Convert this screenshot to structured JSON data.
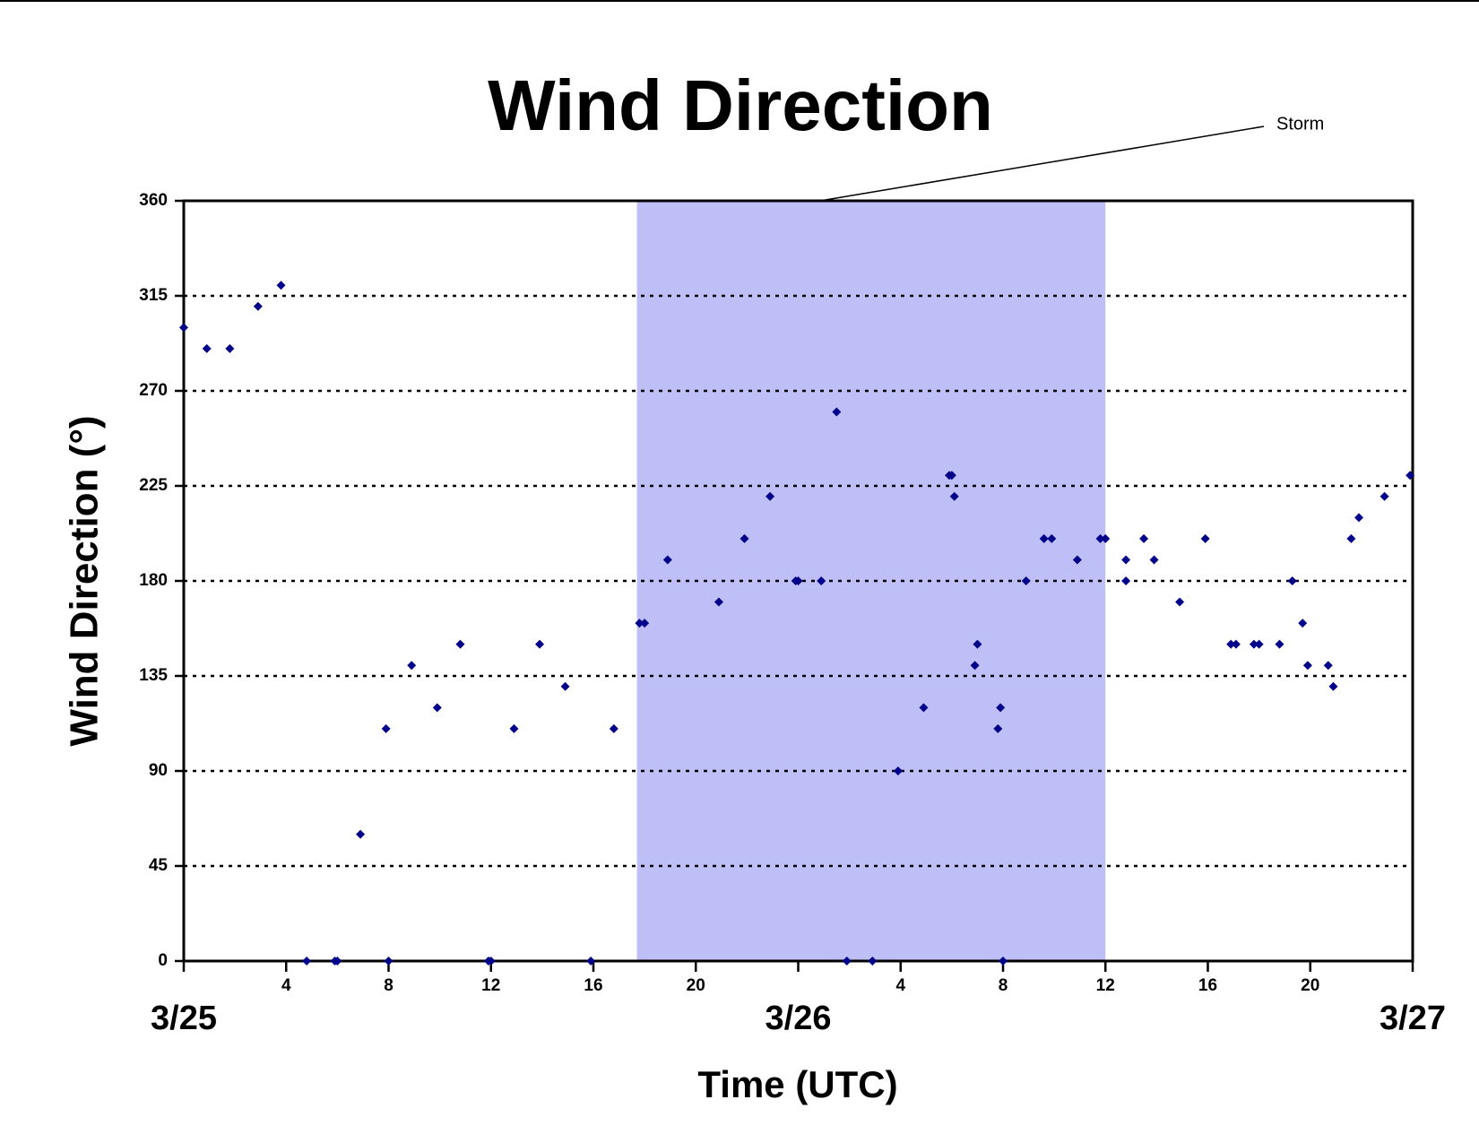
{
  "chart_data": {
    "type": "scatter",
    "title": "Wind Direction",
    "x_label": "Time (UTC)",
    "y_label": "Wind Direction (°)",
    "annotation": "Storm",
    "storm_span": [
      17.7,
      36
    ],
    "storm_color": "#bfbff7",
    "color": "#00008b",
    "grid": true,
    "xlim": [
      0,
      48
    ],
    "xticks": [
      {
        "value": 0,
        "label": "3/25"
      },
      4,
      8,
      12,
      16,
      20,
      {
        "value": 24,
        "label": "3/26"
      },
      4,
      8,
      12,
      16,
      20,
      {
        "value": 48,
        "label": "3/27"
      }
    ],
    "ylim": [
      0,
      360
    ],
    "yticks": [
      0,
      45,
      90,
      135,
      180,
      225,
      270,
      315,
      360
    ],
    "x": [
      0,
      0.9,
      1.8,
      2.9,
      3.8,
      4.8,
      5.9,
      6,
      6.9,
      7.9,
      8,
      8.9,
      9.9,
      10.8,
      11.9,
      12,
      12.9,
      13.9,
      14.9,
      15.9,
      16.8,
      17.8,
      18,
      18.9,
      20.9,
      21.9,
      22.9,
      23.9,
      24,
      24.9,
      25.5,
      25.9,
      26.9,
      27.9,
      28.9,
      29.9,
      30,
      30.1,
      30.9,
      31,
      31.8,
      31.9,
      32,
      32.9,
      33.6,
      33.9,
      34.9,
      35.8,
      36,
      36.8,
      36.8,
      37.5,
      37.9,
      38.9,
      39.9,
      40.9,
      41.1,
      41.8,
      42,
      42.8,
      43.3,
      43.7,
      43.9,
      44.7,
      44.9,
      45.6,
      45.9,
      46.9,
      47.9
    ],
    "values": [
      300,
      290,
      290,
      310,
      320,
      0,
      0,
      0,
      60,
      110,
      0,
      140,
      120,
      150,
      0,
      0,
      110,
      150,
      130,
      0,
      110,
      160,
      160,
      190,
      170,
      200,
      220,
      180,
      180,
      180,
      260,
      0,
      0,
      90,
      120,
      230,
      230,
      220,
      140,
      150,
      110,
      120,
      0,
      180,
      200,
      200,
      190,
      200,
      200,
      190,
      180,
      200,
      190,
      170,
      200,
      150,
      150,
      150,
      150,
      150,
      180,
      160,
      140,
      140,
      130,
      200,
      210,
      220,
      230
    ]
  }
}
